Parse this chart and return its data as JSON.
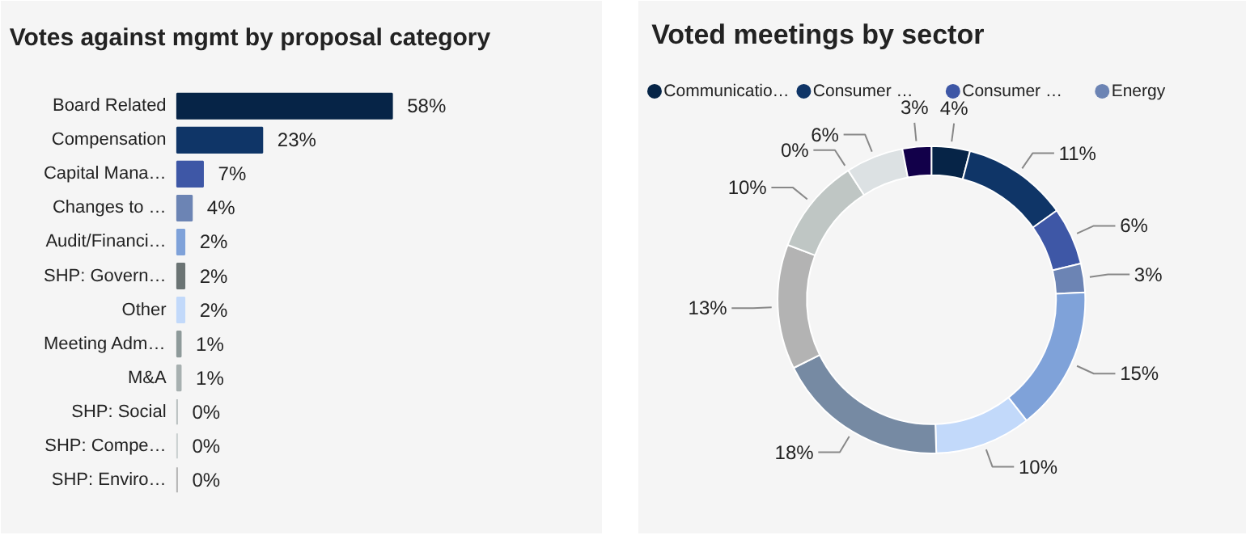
{
  "chart_data": [
    {
      "type": "bar",
      "orientation": "horizontal",
      "title": "Votes against mgmt by proposal category",
      "categories": [
        "Board Related",
        "Compensation",
        "Capital Mana…",
        "Changes to …",
        "Audit/Financi…",
        "SHP: Govern…",
        "Other",
        "Meeting Adm…",
        "M&A",
        "SHP: Social",
        "SHP: Compe…",
        "SHP: Enviro…"
      ],
      "values": [
        58,
        23,
        7,
        4,
        2,
        2,
        2,
        1,
        1,
        0,
        0,
        0
      ],
      "value_labels": [
        "58%",
        "23%",
        "7%",
        "4%",
        "2%",
        "2%",
        "2%",
        "1%",
        "1%",
        "0%",
        "0%",
        "0%"
      ],
      "colors": [
        "#062447",
        "#0f3567",
        "#3e57a6",
        "#6c84b4",
        "#7fa2d9",
        "#6b7474",
        "#c2d9fa",
        "#8e9a9a",
        "#a7b0b0",
        "#b8bfbf",
        "#c9cfcf",
        "#b3b3b3"
      ]
    },
    {
      "type": "donut",
      "title": "Voted meetings by sector",
      "legend": "top",
      "categories": [
        "Communicatio…",
        "Consumer …",
        "Consumer …",
        "Energy",
        null,
        null,
        null,
        null,
        null,
        null,
        null,
        null
      ],
      "values": [
        4,
        11,
        6,
        3,
        15,
        10,
        18,
        13,
        10,
        0,
        6,
        3
      ],
      "value_labels": [
        "4%",
        "11%",
        "6%",
        "3%",
        "15%",
        "10%",
        "18%",
        "13%",
        "10%",
        "0%",
        "6%",
        "3%"
      ],
      "colors": [
        "#062447",
        "#0f3567",
        "#3e57a6",
        "#6c84b4",
        "#7fa2d9",
        "#c2d9fa",
        "#768aa3",
        "#b3b3b3",
        "#bfc6c4",
        "#cdd3d2",
        "#dce1e3",
        "#12004a"
      ]
    }
  ]
}
